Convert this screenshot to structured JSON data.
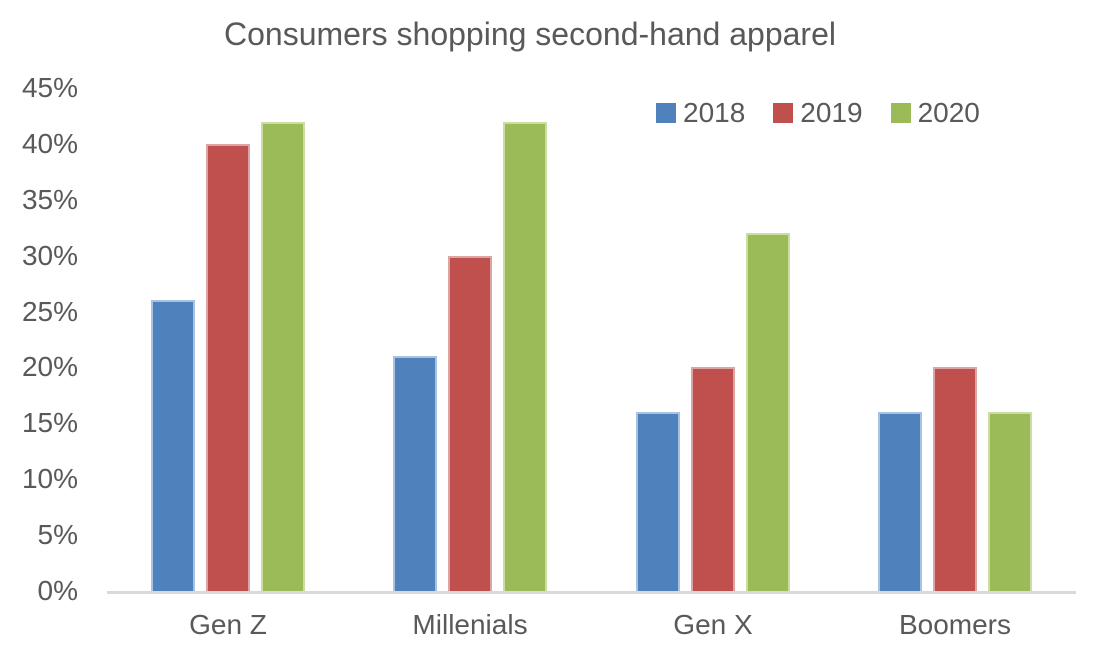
{
  "chart_data": {
    "type": "bar",
    "title": "Consumers shopping second-hand apparel",
    "categories": [
      "Gen Z",
      "Millenials",
      "Gen X",
      "Boomers"
    ],
    "series": [
      {
        "name": "2018",
        "color": "#4F81BD",
        "edge_color": "#A9C2DF",
        "values": [
          26,
          21,
          16,
          16
        ]
      },
      {
        "name": "2019",
        "color": "#C0504D",
        "edge_color": "#DBA5A3",
        "values": [
          40,
          30,
          20,
          20
        ]
      },
      {
        "name": "2020",
        "color": "#9BBB59",
        "edge_color": "#CBDCA4",
        "values": [
          42,
          42,
          32,
          16
        ]
      }
    ],
    "xlabel": "",
    "ylabel": "",
    "ylim": [
      0,
      45
    ],
    "ytick_step": 5,
    "ytick_labels": [
      "45%",
      "40%",
      "35%",
      "30%",
      "25%",
      "20%",
      "15%",
      "10%",
      "5%",
      "0%"
    ],
    "grid": false,
    "legend_position": "top-right",
    "axis_line_color": "#D9D9D9",
    "text_color": "#595959",
    "background_color": "#FFFFFF"
  }
}
